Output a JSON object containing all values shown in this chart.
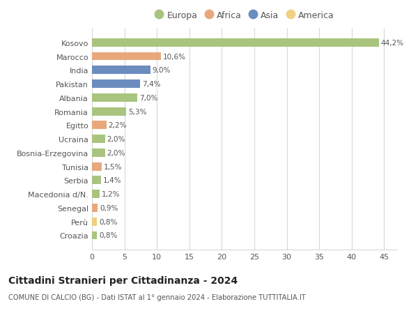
{
  "countries": [
    "Kosovo",
    "Marocco",
    "India",
    "Pakistan",
    "Albania",
    "Romania",
    "Egitto",
    "Ucraina",
    "Bosnia-Erzegovina",
    "Tunisia",
    "Serbia",
    "Macedonia d/N.",
    "Senegal",
    "Perù",
    "Croazia"
  ],
  "values": [
    44.2,
    10.6,
    9.0,
    7.4,
    7.0,
    5.3,
    2.2,
    2.0,
    2.0,
    1.5,
    1.4,
    1.2,
    0.9,
    0.8,
    0.8
  ],
  "labels": [
    "44,2%",
    "10,6%",
    "9,0%",
    "7,4%",
    "7,0%",
    "5,3%",
    "2,2%",
    "2,0%",
    "2,0%",
    "1,5%",
    "1,4%",
    "1,2%",
    "0,9%",
    "0,8%",
    "0,8%"
  ],
  "continents": [
    "Europa",
    "Africa",
    "Asia",
    "Asia",
    "Europa",
    "Europa",
    "Africa",
    "Europa",
    "Europa",
    "Africa",
    "Europa",
    "Europa",
    "Africa",
    "America",
    "Europa"
  ],
  "colors": {
    "Europa": "#a8c47e",
    "Africa": "#e8a87c",
    "Asia": "#6b8cbf",
    "America": "#f0d080"
  },
  "legend_order": [
    "Europa",
    "Africa",
    "Asia",
    "America"
  ],
  "title": "Cittadini Stranieri per Cittadinanza - 2024",
  "subtitle": "COMUNE DI CALCIO (BG) - Dati ISTAT al 1° gennaio 2024 - Elaborazione TUTTITALIA.IT",
  "xlim": [
    0,
    47
  ],
  "xticks": [
    0,
    5,
    10,
    15,
    20,
    25,
    30,
    35,
    40,
    45
  ],
  "bg_color": "#ffffff",
  "grid_color": "#d8d8d8"
}
